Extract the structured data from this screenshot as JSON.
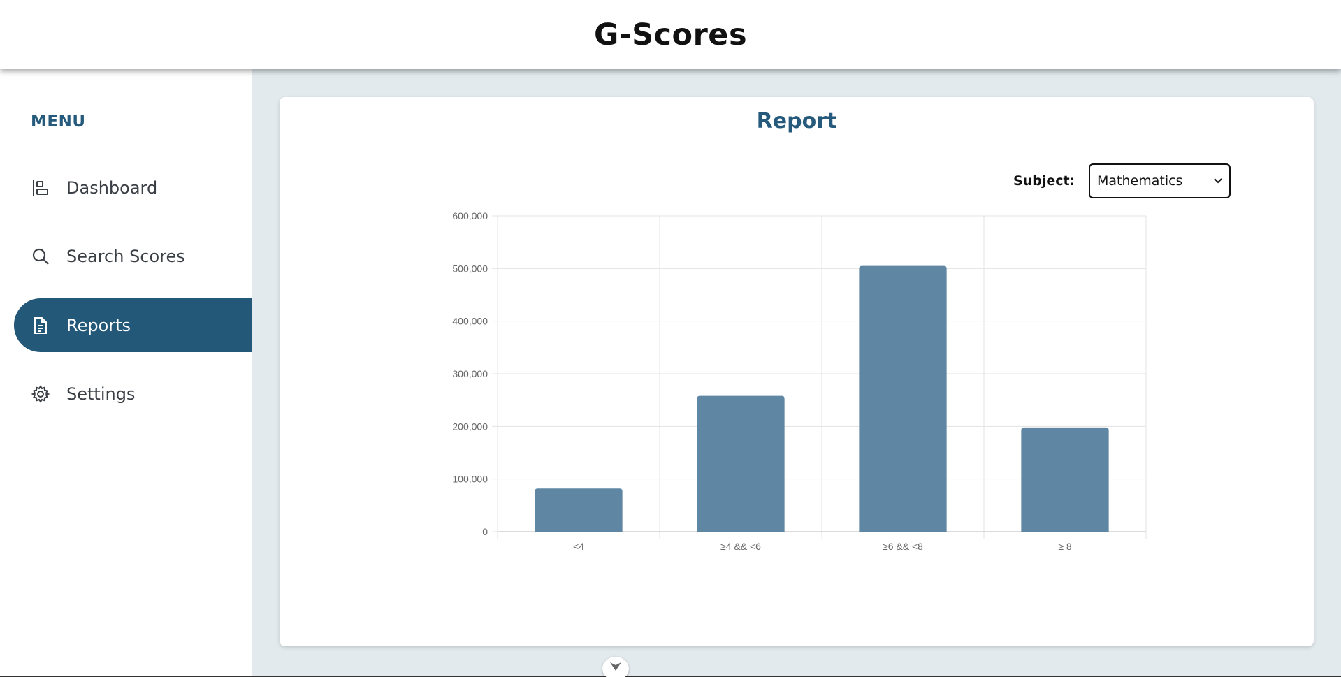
{
  "app": {
    "title": "G-Scores"
  },
  "sidebar": {
    "heading": "MENU",
    "items": [
      {
        "label": "Dashboard",
        "icon": "dashboard-icon",
        "active": false
      },
      {
        "label": "Search Scores",
        "icon": "search-icon",
        "active": false
      },
      {
        "label": "Reports",
        "icon": "document-icon",
        "active": true
      },
      {
        "label": "Settings",
        "icon": "gear-icon",
        "active": false
      }
    ]
  },
  "report": {
    "title": "Report",
    "subject_label": "Subject:",
    "subject_selected": "Mathematics"
  },
  "colors": {
    "accent": "#235879",
    "bar": "#5f87a3",
    "heading": "#255a7c"
  },
  "chart_data": {
    "type": "bar",
    "categories": [
      "<4",
      "≥4 && <6",
      "≥6 && <8",
      "≥ 8"
    ],
    "values": [
      82000,
      258000,
      505000,
      198000
    ],
    "ylim": [
      0,
      600000
    ],
    "yticks": [
      0,
      100000,
      200000,
      300000,
      400000,
      500000,
      600000
    ],
    "ytick_labels": [
      "0",
      "100,000",
      "200,000",
      "300,000",
      "400,000",
      "500,000",
      "600,000"
    ],
    "grid": true,
    "legend": "none"
  },
  "scroll_handle": {
    "icon": "chevron-down-icon"
  }
}
